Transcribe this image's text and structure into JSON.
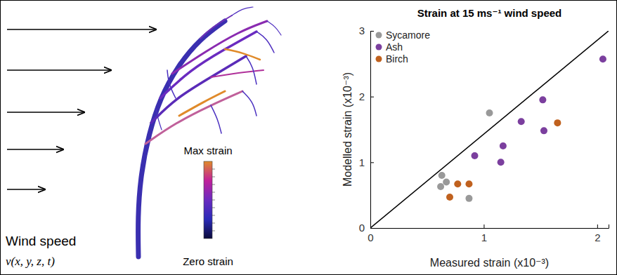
{
  "chart_data": {
    "type": "scatter",
    "title": "Strain at 15 ms⁻¹ wind speed",
    "x_label": "Measured strain (x10⁻³)",
    "y_label": "Modelled strain (x10⁻³)",
    "xlim": [
      0,
      2.1
    ],
    "xticks": [
      0,
      1,
      2
    ],
    "ylim": [
      0,
      3
    ],
    "yticks": [
      0,
      1,
      2,
      3
    ],
    "legend": "top-left",
    "grid": false,
    "series": [
      {
        "name": "Sycamore",
        "color": "#999999",
        "type": "scatter",
        "marker": "circle",
        "x": [
          0.63,
          0.62,
          0.67,
          1.05,
          0.87
        ],
        "values": [
          0.8,
          0.63,
          0.7,
          1.75,
          0.45
        ]
      },
      {
        "name": "Ash",
        "color": "#7b3f9e",
        "type": "scatter",
        "marker": "circle",
        "x": [
          2.05,
          0.92,
          1.15,
          1.17,
          1.33,
          1.52,
          1.53
        ],
        "values": [
          2.57,
          1.1,
          1.0,
          1.25,
          1.62,
          1.95,
          1.48
        ]
      },
      {
        "name": "Birch",
        "color": "#c0611e",
        "type": "scatter",
        "marker": "circle",
        "x": [
          0.7,
          0.77,
          0.87,
          1.65
        ],
        "values": [
          0.47,
          0.67,
          0.67,
          1.6
        ]
      },
      {
        "type": "line",
        "color": "#000000",
        "line_style": "solid",
        "x": [
          0,
          2.1
        ],
        "values": [
          0,
          3
        ]
      }
    ]
  },
  "diagram": {
    "wind_label": "Wind speed",
    "wind_formula": "v(x, y, z, t)",
    "colorbar_max_label": "Max strain",
    "colorbar_min_label": "Zero strain"
  }
}
